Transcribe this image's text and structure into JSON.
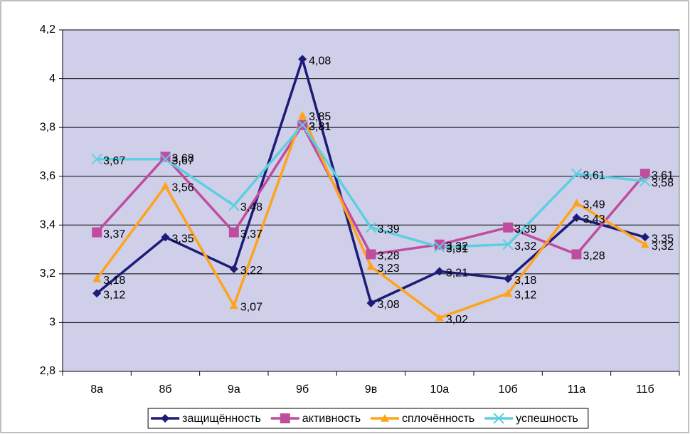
{
  "chart_data": {
    "type": "line",
    "categories": [
      "8а",
      "8б",
      "9а",
      "9б",
      "9в",
      "10а",
      "10б",
      "11а",
      "11б"
    ],
    "series": [
      {
        "name": "защищённость",
        "color": "#1c1c78",
        "marker": "diamond",
        "values": [
          3.12,
          3.35,
          3.22,
          4.08,
          3.08,
          3.21,
          3.18,
          3.43,
          3.35
        ],
        "value_labels": [
          "3,12",
          "3,35",
          "3,22",
          "4,08",
          "3,08",
          "3,21",
          "3,18",
          "3,43",
          "3,35"
        ]
      },
      {
        "name": "активность",
        "color": "#c04ca0",
        "marker": "square",
        "values": [
          3.37,
          3.68,
          3.37,
          3.81,
          3.28,
          3.32,
          3.39,
          3.28,
          3.61
        ],
        "value_labels": [
          "3,37",
          "3,68",
          "3,37",
          "3,81",
          "3,28",
          "3,32",
          "3,39",
          "3,28",
          "3,61"
        ]
      },
      {
        "name": "сплочённость",
        "color": "#ffa31a",
        "marker": "triangle",
        "values": [
          3.18,
          3.56,
          3.07,
          3.85,
          3.23,
          3.02,
          3.12,
          3.49,
          3.32
        ],
        "value_labels": [
          "3,18",
          "3,56",
          "3,07",
          "3,85",
          "3,23",
          "3,02",
          "3,12",
          "3,49",
          "3,32"
        ]
      },
      {
        "name": "успешность",
        "color": "#5ccfe0",
        "marker": "x",
        "values": [
          3.67,
          3.67,
          3.48,
          3.81,
          3.39,
          3.31,
          3.32,
          3.61,
          3.58
        ],
        "value_labels": [
          "3,67",
          "3,67",
          "3,48",
          "3,81",
          "3,39",
          "3,31",
          "3,32",
          "3,61",
          "3,58"
        ]
      }
    ],
    "ylim": [
      2.8,
      4.2
    ],
    "yticks": [
      {
        "value": 2.8,
        "label": "2,8"
      },
      3,
      {
        "value": 3.2,
        "label": "3,2"
      },
      {
        "value": 3.4,
        "label": "3,4"
      },
      {
        "value": 3.6,
        "label": "3,6"
      },
      {
        "value": 3.8,
        "label": "3,8"
      },
      4,
      {
        "value": 4.2,
        "label": "4,2"
      }
    ],
    "grid": true,
    "legend": "bottom",
    "plot_background": "#cfcfea"
  }
}
